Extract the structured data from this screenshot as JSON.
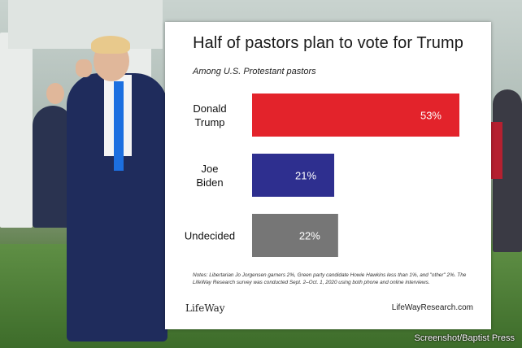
{
  "chart_data": {
    "type": "bar",
    "orientation": "horizontal",
    "title": "Half of pastors plan to vote for Trump",
    "subtitle": "Among U.S. Protestant pastors",
    "categories": [
      "Donald Trump",
      "Joe Biden",
      "Undecided"
    ],
    "category_lines": [
      [
        "Donald",
        "Trump"
      ],
      [
        "Joe",
        "Biden"
      ],
      [
        "Undecided"
      ]
    ],
    "values": [
      53,
      21,
      22
    ],
    "value_labels": [
      "53%",
      "21%",
      "22%"
    ],
    "colors": [
      "#e3232b",
      "#2e2f8f",
      "#767676"
    ],
    "xlim": [
      0,
      60
    ],
    "grid": false,
    "legend": "none"
  },
  "notes": "Notes: Libertarian Jo Jorgensen garners 2%, Green party candidate Howie Hawkins less than 1%, and \"other\" 2%. The LifeWay Research survey was conducted Sept. 2–Oct. 1, 2020 using both phone and online interviews.",
  "logo_text": "LifeWay",
  "site": "LifeWayResearch.com",
  "credit": "Screenshot/Baptist Press"
}
